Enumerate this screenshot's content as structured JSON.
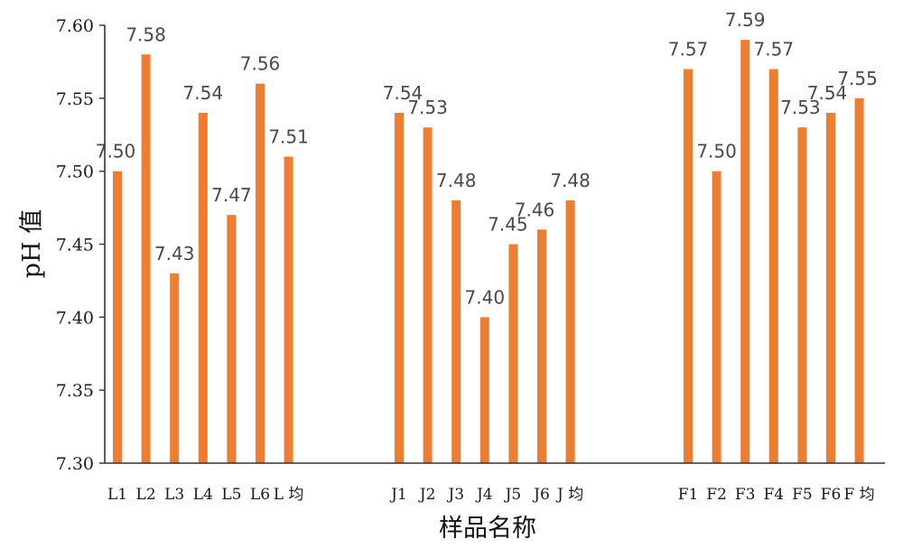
{
  "chart_data": {
    "type": "bar",
    "ylabel": "pH 值",
    "xlabel": "样品名称",
    "ylim": [
      7.3,
      7.6
    ],
    "yticks": [
      "7.30",
      "7.35",
      "7.40",
      "7.45",
      "7.50",
      "7.55",
      "7.60"
    ],
    "grid": false,
    "bar_color": "#ED7D31",
    "groups": [
      {
        "categories": [
          "L1",
          "L2",
          "L3",
          "L4",
          "L5",
          "L6",
          "L 均"
        ],
        "values": [
          7.5,
          7.58,
          7.43,
          7.54,
          7.47,
          7.56,
          7.51
        ]
      },
      {
        "categories": [
          "J1",
          "J2",
          "J3",
          "J4",
          "J5",
          "J6",
          "J 均"
        ],
        "values": [
          7.54,
          7.53,
          7.48,
          7.4,
          7.45,
          7.46,
          7.48
        ]
      },
      {
        "categories": [
          "F1",
          "F2",
          "F3",
          "F4",
          "F5",
          "F6",
          "F 均"
        ],
        "values": [
          7.57,
          7.5,
          7.59,
          7.57,
          7.53,
          7.54,
          7.55
        ]
      }
    ]
  }
}
